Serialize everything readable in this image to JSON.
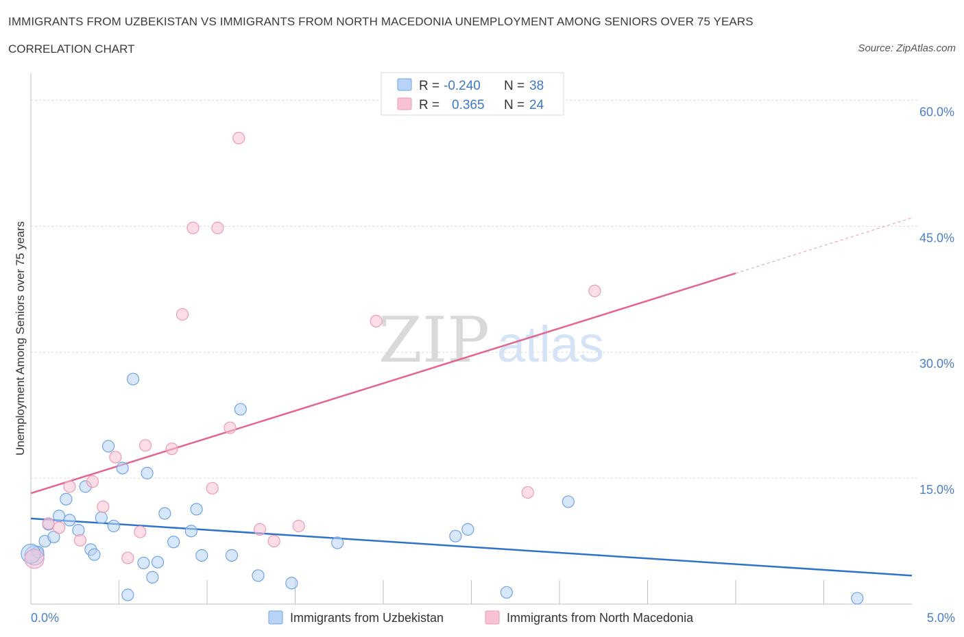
{
  "header": {
    "title": "IMMIGRANTS FROM UZBEKISTAN VS IMMIGRANTS FROM NORTH MACEDONIA UNEMPLOYMENT AMONG SENIORS OVER 75 YEARS",
    "subtitle": "CORRELATION CHART",
    "source": "Source: ZipAtlas.com"
  },
  "watermark": {
    "zip": "ZIP",
    "atlas": "atlas"
  },
  "legend": {
    "rows": [
      {
        "r_label": "R =",
        "r_value": "-0.240",
        "n_label": "N =",
        "n_value": "38",
        "color": "#b8d3f5"
      },
      {
        "r_label": "R =",
        "r_value": "0.365",
        "n_label": "N =",
        "n_value": "24",
        "color": "#f7c3d3"
      }
    ]
  },
  "chart_data": {
    "type": "scatter",
    "title": "IMMIGRANTS FROM UZBEKISTAN VS IMMIGRANTS FROM NORTH MACEDONIA UNEMPLOYMENT AMONG SENIORS OVER 75 YEARS",
    "ylabel": "Unemployment Among Seniors over 75 years",
    "xlabel": "",
    "xlim": [
      0,
      5
    ],
    "ylim": [
      0,
      60
    ],
    "x_tick_labels": [
      "0.0%",
      "5.0%"
    ],
    "x_ticks": [
      0,
      5
    ],
    "y_tick_labels": [
      "15.0%",
      "30.0%",
      "45.0%",
      "60.0%"
    ],
    "y_ticks": [
      15,
      30,
      45,
      60
    ],
    "grid": "horizontal dashed",
    "legend_position": "top-center",
    "series": [
      {
        "name": "Immigrants from Uzbekistan",
        "color": "#6fa3e6",
        "fill": "#b8d3f5",
        "line_color": "#2f72c9",
        "trend": {
          "x": [
            0,
            5
          ],
          "y": [
            10.2,
            3.4
          ]
        },
        "points": [
          [
            0.02,
            5.8
          ],
          [
            0.04,
            6.2
          ],
          [
            0.08,
            7.5
          ],
          [
            0.1,
            9.5
          ],
          [
            0.13,
            8.0
          ],
          [
            0.16,
            10.5
          ],
          [
            0.2,
            12.5
          ],
          [
            0.22,
            10.0
          ],
          [
            0.27,
            8.8
          ],
          [
            0.31,
            14.0
          ],
          [
            0.34,
            6.5
          ],
          [
            0.36,
            5.9
          ],
          [
            0.4,
            10.3
          ],
          [
            0.44,
            18.8
          ],
          [
            0.47,
            9.3
          ],
          [
            0.52,
            16.2
          ],
          [
            0.55,
            1.1
          ],
          [
            0.58,
            26.8
          ],
          [
            0.64,
            4.9
          ],
          [
            0.66,
            15.6
          ],
          [
            0.69,
            3.2
          ],
          [
            0.72,
            5.0
          ],
          [
            0.76,
            10.8
          ],
          [
            0.81,
            7.4
          ],
          [
            0.91,
            8.7
          ],
          [
            0.94,
            11.3
          ],
          [
            0.97,
            5.8
          ],
          [
            1.14,
            5.8
          ],
          [
            1.19,
            23.2
          ],
          [
            1.29,
            3.4
          ],
          [
            1.48,
            2.5
          ],
          [
            1.74,
            7.3
          ],
          [
            2.41,
            8.1
          ],
          [
            2.48,
            8.9
          ],
          [
            2.7,
            1.4
          ],
          [
            3.05,
            12.2
          ],
          [
            4.69,
            0.7
          ],
          [
            0.0,
            6.0
          ]
        ]
      },
      {
        "name": "Immigrants from North Macedonia",
        "color": "#ef9ab3",
        "fill": "#f7c3d3",
        "line_color": "#e2658f",
        "trend": {
          "x": [
            0,
            4.0
          ],
          "y": [
            13.2,
            39.4
          ]
        },
        "trend_dashed": {
          "x": [
            4.0,
            5.0
          ],
          "y": [
            39.4,
            46.0
          ]
        },
        "points": [
          [
            0.02,
            5.4
          ],
          [
            0.1,
            9.6
          ],
          [
            0.16,
            9.1
          ],
          [
            0.22,
            14.0
          ],
          [
            0.28,
            7.6
          ],
          [
            0.35,
            14.6
          ],
          [
            0.41,
            11.6
          ],
          [
            0.48,
            17.5
          ],
          [
            0.55,
            5.5
          ],
          [
            0.62,
            8.6
          ],
          [
            0.65,
            18.9
          ],
          [
            0.8,
            18.5
          ],
          [
            0.86,
            34.5
          ],
          [
            0.92,
            44.8
          ],
          [
            1.03,
            13.8
          ],
          [
            1.06,
            44.8
          ],
          [
            1.13,
            21.0
          ],
          [
            1.18,
            55.5
          ],
          [
            1.3,
            8.9
          ],
          [
            1.38,
            7.5
          ],
          [
            1.52,
            9.3
          ],
          [
            1.96,
            33.7
          ],
          [
            2.82,
            13.3
          ],
          [
            3.2,
            37.3
          ]
        ]
      }
    ]
  }
}
